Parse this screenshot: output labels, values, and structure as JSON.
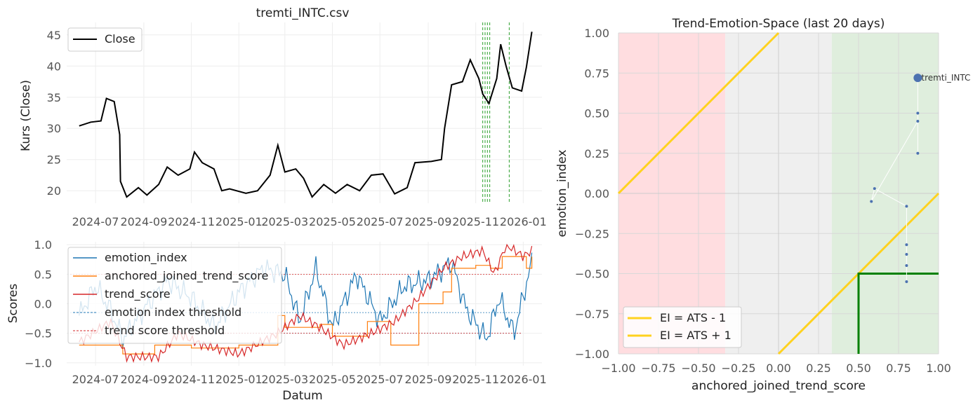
{
  "chart_data": [
    {
      "type": "line",
      "title": "tremti_INTC.csv",
      "xlabel": "",
      "ylabel": "Kurs (Close)",
      "ylim": [
        18,
        47
      ],
      "x_ticks": [
        "2024-07",
        "2024-09",
        "2024-11",
        "2025-01",
        "2025-03",
        "2025-05",
        "2025-07",
        "2025-09",
        "2025-11",
        "2026-01"
      ],
      "y_ticks": [
        20,
        25,
        30,
        35,
        40,
        45
      ],
      "legend": "top-left",
      "grid": true,
      "series": [
        {
          "name": "Close",
          "color": "#000000",
          "points": [
            [
              "2024-06-10",
              30.4
            ],
            [
              "2024-06-25",
              31.0
            ],
            [
              "2024-07-08",
              31.2
            ],
            [
              "2024-07-15",
              34.8
            ],
            [
              "2024-07-25",
              34.3
            ],
            [
              "2024-08-01",
              29.0
            ],
            [
              "2024-08-02",
              21.5
            ],
            [
              "2024-08-10",
              19.0
            ],
            [
              "2024-08-25",
              20.5
            ],
            [
              "2024-09-05",
              19.3
            ],
            [
              "2024-09-20",
              21.0
            ],
            [
              "2024-10-01",
              23.8
            ],
            [
              "2024-10-15",
              22.5
            ],
            [
              "2024-10-30",
              23.5
            ],
            [
              "2024-11-05",
              26.2
            ],
            [
              "2024-11-15",
              24.5
            ],
            [
              "2024-11-30",
              23.5
            ],
            [
              "2024-12-10",
              20.0
            ],
            [
              "2024-12-20",
              20.3
            ],
            [
              "2025-01-10",
              19.6
            ],
            [
              "2025-01-25",
              20.0
            ],
            [
              "2025-02-10",
              22.5
            ],
            [
              "2025-02-20",
              27.3
            ],
            [
              "2025-03-01",
              23.0
            ],
            [
              "2025-03-15",
              23.5
            ],
            [
              "2025-03-25",
              22.0
            ],
            [
              "2025-04-05",
              19.0
            ],
            [
              "2025-04-20",
              21.0
            ],
            [
              "2025-05-05",
              19.6
            ],
            [
              "2025-05-20",
              21.0
            ],
            [
              "2025-06-05",
              20.0
            ],
            [
              "2025-06-20",
              22.5
            ],
            [
              "2025-07-05",
              22.7
            ],
            [
              "2025-07-20",
              19.5
            ],
            [
              "2025-08-05",
              20.5
            ],
            [
              "2025-08-15",
              24.5
            ],
            [
              "2025-09-05",
              24.7
            ],
            [
              "2025-09-18",
              25.0
            ],
            [
              "2025-09-22",
              30.0
            ],
            [
              "2025-10-01",
              37.0
            ],
            [
              "2025-10-15",
              37.5
            ],
            [
              "2025-10-25",
              41.0
            ],
            [
              "2025-11-05",
              38.0
            ],
            [
              "2025-11-10",
              35.5
            ],
            [
              "2025-11-18",
              34.0
            ],
            [
              "2025-11-28",
              38.0
            ],
            [
              "2025-12-03",
              43.5
            ],
            [
              "2025-12-10",
              40.0
            ],
            [
              "2025-12-18",
              36.5
            ],
            [
              "2025-12-30",
              36.0
            ],
            [
              "2026-01-05",
              39.8
            ],
            [
              "2026-01-12",
              45.5
            ]
          ]
        }
      ],
      "vlines": [
        "2025-11-10",
        "2025-11-13",
        "2025-11-16",
        "2025-11-19",
        "2025-12-14"
      ],
      "vline_color": "#2ca02c"
    },
    {
      "type": "line",
      "title": "",
      "xlabel": "Datum",
      "ylabel": "Scores",
      "ylim": [
        -1.05,
        1.05
      ],
      "x_ticks": [
        "2024-07",
        "2024-09",
        "2024-11",
        "2025-01",
        "2025-03",
        "2025-05",
        "2025-07",
        "2025-09",
        "2025-11",
        "2026-01"
      ],
      "y_ticks": [
        -1.0,
        -0.5,
        0.0,
        0.5,
        1.0
      ],
      "legend": "top-left",
      "grid": true,
      "series": [
        {
          "name": "emotion_index",
          "color": "#1f77b4",
          "points": [
            [
              "2024-06-10",
              -0.2
            ],
            [
              "2024-07-01",
              0.3
            ],
            [
              "2024-07-20",
              -0.1
            ],
            [
              "2024-08-05",
              -0.6
            ],
            [
              "2024-09-01",
              -0.1
            ],
            [
              "2024-10-01",
              0.4
            ],
            [
              "2024-11-01",
              0.1
            ],
            [
              "2024-12-01",
              -0.4
            ],
            [
              "2025-01-01",
              0.2
            ],
            [
              "2025-02-01",
              0.6
            ],
            [
              "2025-03-01",
              0.5
            ],
            [
              "2025-03-20",
              -0.3
            ],
            [
              "2025-04-10",
              0.6
            ],
            [
              "2025-05-01",
              -0.4
            ],
            [
              "2025-06-01",
              0.5
            ],
            [
              "2025-07-01",
              -0.3
            ],
            [
              "2025-08-01",
              0.3
            ],
            [
              "2025-09-01",
              0.4
            ],
            [
              "2025-10-01",
              0.7
            ],
            [
              "2025-10-20",
              -0.1
            ],
            [
              "2025-11-15",
              -0.6
            ],
            [
              "2025-12-01",
              0.1
            ],
            [
              "2025-12-20",
              -0.5
            ],
            [
              "2026-01-12",
              0.7
            ]
          ]
        },
        {
          "name": "anchored_joined_trend_score",
          "color": "#ff7f0e",
          "points": [
            [
              "2024-06-10",
              -0.7
            ],
            [
              "2024-08-05",
              -0.85
            ],
            [
              "2024-09-15",
              -0.7
            ],
            [
              "2024-11-01",
              -0.75
            ],
            [
              "2025-01-01",
              -0.7
            ],
            [
              "2025-02-20",
              -0.2
            ],
            [
              "2025-03-01",
              -0.4
            ],
            [
              "2025-04-15",
              -0.35
            ],
            [
              "2025-05-01",
              -0.55
            ],
            [
              "2025-06-15",
              -0.3
            ],
            [
              "2025-07-15",
              -0.7
            ],
            [
              "2025-08-20",
              0.0
            ],
            [
              "2025-09-20",
              0.2
            ],
            [
              "2025-10-01",
              0.6
            ],
            [
              "2025-11-01",
              0.65
            ],
            [
              "2025-11-20",
              0.6
            ],
            [
              "2025-12-05",
              0.8
            ],
            [
              "2026-01-05",
              0.6
            ],
            [
              "2026-01-12",
              0.8
            ]
          ]
        },
        {
          "name": "trend_score",
          "color": "#d62728",
          "points": [
            [
              "2024-06-10",
              -0.65
            ],
            [
              "2024-07-20",
              -0.3
            ],
            [
              "2024-08-10",
              -0.9
            ],
            [
              "2024-09-20",
              -0.9
            ],
            [
              "2024-10-15",
              -0.5
            ],
            [
              "2024-11-15",
              -0.7
            ],
            [
              "2025-01-01",
              -0.85
            ],
            [
              "2025-02-20",
              -0.5
            ],
            [
              "2025-03-20",
              -0.2
            ],
            [
              "2025-04-15",
              -0.4
            ],
            [
              "2025-05-15",
              -0.7
            ],
            [
              "2025-06-20",
              -0.5
            ],
            [
              "2025-07-20",
              -0.3
            ],
            [
              "2025-08-20",
              0.1
            ],
            [
              "2025-09-20",
              0.6
            ],
            [
              "2025-10-15",
              0.8
            ],
            [
              "2025-11-10",
              0.9
            ],
            [
              "2025-11-25",
              0.5
            ],
            [
              "2025-12-10",
              1.0
            ],
            [
              "2026-01-01",
              0.8
            ],
            [
              "2026-01-12",
              0.9
            ]
          ]
        }
      ],
      "thresholds": [
        {
          "name": "emotion index threshold",
          "color": "#1f77b4",
          "values": [
            -0.15,
            -0.5
          ]
        },
        {
          "name": "trend score threshold",
          "color": "#d62728",
          "values": [
            0.5,
            -0.5
          ]
        }
      ]
    },
    {
      "type": "scatter",
      "title": "Trend-Emotion-Space (last 20 days)",
      "xlabel": "anchored_joined_trend_score",
      "ylabel": "emotion_index",
      "xlim": [
        -1.0,
        1.0
      ],
      "ylim": [
        -1.0,
        1.0
      ],
      "x_ticks": [
        "−1.00",
        "−0.75",
        "−0.50",
        "−0.25",
        "0.00",
        "0.25",
        "0.50",
        "0.75",
        "1.00"
      ],
      "y_ticks": [
        "−1.00",
        "−0.75",
        "−0.50",
        "−0.25",
        "0.00",
        "0.25",
        "0.50",
        "0.75",
        "1.00"
      ],
      "legend": "bottom-left",
      "regions": [
        {
          "from": -1.0,
          "to": -0.333,
          "color": "#ffdde0"
        },
        {
          "from": -0.333,
          "to": 0.333,
          "color": "#efefef"
        },
        {
          "from": 0.333,
          "to": 1.0,
          "color": "#dfeedd"
        }
      ],
      "lines": [
        {
          "name": "EI = ATS - 1",
          "color": "#ffd21f"
        },
        {
          "name": "EI = ATS + 1",
          "color": "#ffd21f"
        }
      ],
      "corner_box": {
        "x": 0.5,
        "y": -0.5,
        "color": "#008000"
      },
      "trajectory": [
        [
          0.8,
          -0.55
        ],
        [
          0.8,
          -0.45
        ],
        [
          0.8,
          -0.38
        ],
        [
          0.8,
          -0.32
        ],
        [
          0.8,
          -0.08
        ],
        [
          0.6,
          0.03
        ],
        [
          0.58,
          -0.05
        ],
        [
          0.87,
          0.45
        ],
        [
          0.87,
          0.25
        ],
        [
          0.87,
          0.5
        ],
        [
          0.87,
          0.72
        ]
      ],
      "point": {
        "x": 0.87,
        "y": 0.72,
        "label": "tremti_INTC"
      }
    }
  ]
}
